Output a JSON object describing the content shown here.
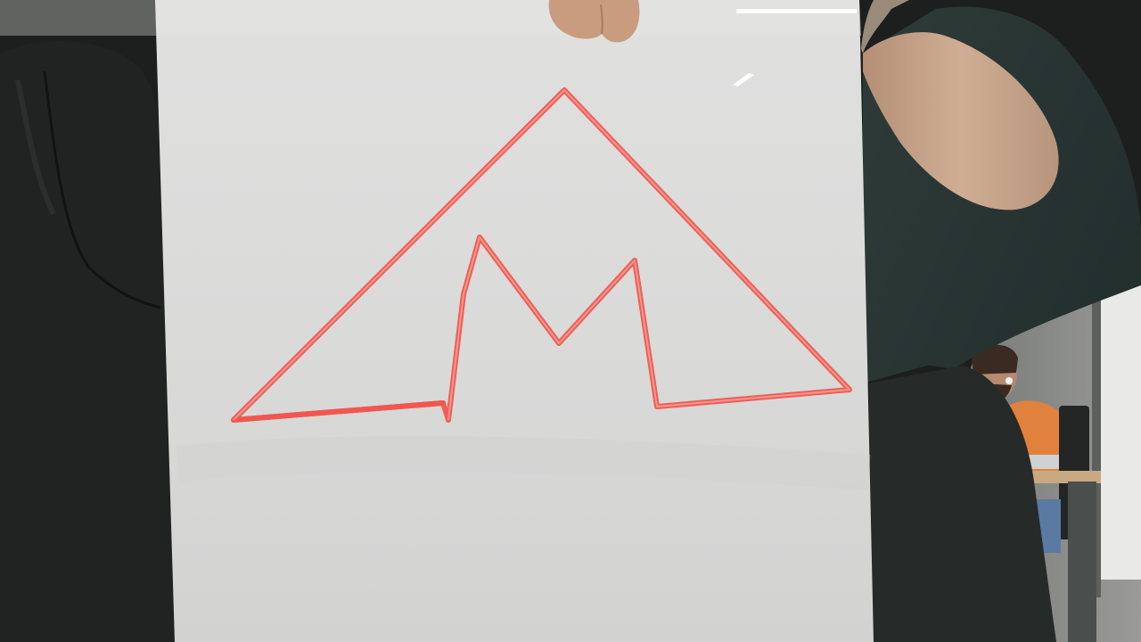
{
  "scene": {
    "description_colors": {
      "background_dark": "#1c1f1d",
      "jacket_left": "#202321",
      "sleeve_right": "#273432",
      "board_white": "#dcdcdc",
      "marker_red": "#f0574f",
      "skin": "#c9a58a",
      "shirt_orange": "#e0813e",
      "wall_grey": "#8c8c89",
      "window_light": "#ececec"
    }
  }
}
